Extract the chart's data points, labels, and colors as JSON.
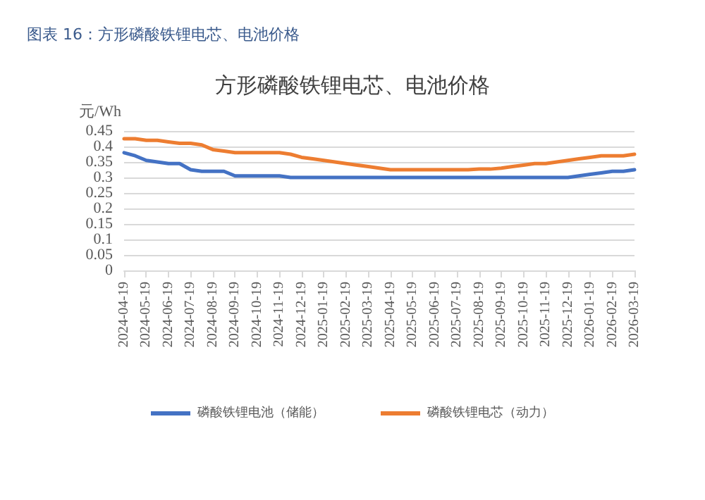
{
  "chart_data": {
    "type": "line",
    "title": "图表 16：方形磷酸铁锂电芯、电池价格",
    "subtitle": "方形磷酸铁锂电芯、电池价格",
    "ylabel": "元/Wh",
    "categories": [
      "2024-04-19",
      null,
      "2024-05-19",
      null,
      "2024-06-19",
      null,
      "2024-07-19",
      null,
      "2024-08-19",
      null,
      "2024-09-19",
      null,
      "2024-10-19",
      null,
      "2024-11-19",
      null,
      "2024-12-19",
      null,
      "2025-01-19",
      null,
      "2025-02-19",
      null,
      "2025-03-19",
      null,
      "2025-04-19",
      null,
      "2025-05-19",
      null,
      "2025-06-19",
      null,
      "2025-07-19",
      null,
      "2025-08-19",
      null,
      "2025-09-19",
      null,
      "2025-10-19",
      null,
      "2025-11-19",
      null,
      "2025-12-19",
      null,
      "2026-01-19",
      null,
      "2026-02-19",
      null,
      "2026-03-19"
    ],
    "series": [
      {
        "name": "磷酸铁锂电池（储能）",
        "color": "#4472c4",
        "values": [
          0.38,
          0.37,
          0.355,
          0.35,
          0.345,
          0.345,
          0.325,
          0.32,
          0.32,
          0.32,
          0.305,
          0.305,
          0.305,
          0.305,
          0.305,
          0.3,
          0.3,
          0.3,
          0.3,
          0.3,
          0.3,
          0.3,
          0.3,
          0.3,
          0.3,
          0.3,
          0.3,
          0.3,
          0.3,
          0.3,
          0.3,
          0.3,
          0.3,
          0.3,
          0.3,
          0.3,
          0.3,
          0.3,
          0.3,
          0.3,
          0.3,
          0.305,
          0.31,
          0.315,
          0.32,
          0.32,
          0.325
        ]
      },
      {
        "name": "磷酸铁锂电芯（动力）",
        "color": "#ed7d31",
        "values": [
          0.425,
          0.425,
          0.42,
          0.42,
          0.415,
          0.41,
          0.41,
          0.405,
          0.39,
          0.385,
          0.38,
          0.38,
          0.38,
          0.38,
          0.38,
          0.375,
          0.365,
          0.36,
          0.355,
          0.35,
          0.345,
          0.34,
          0.335,
          0.33,
          0.325,
          0.325,
          0.325,
          0.325,
          0.325,
          0.325,
          0.325,
          0.325,
          0.327,
          0.327,
          0.33,
          0.335,
          0.34,
          0.345,
          0.345,
          0.35,
          0.355,
          0.36,
          0.365,
          0.37,
          0.37,
          0.37,
          0.375
        ]
      }
    ],
    "ylim": [
      0,
      0.45
    ],
    "yticks": [
      0,
      0.05,
      0.1,
      0.15,
      0.2,
      0.25,
      0.3,
      0.35,
      0.4,
      0.45
    ],
    "grid": "y",
    "legend": "bottom",
    "marker": "none",
    "line_style": "solid"
  }
}
